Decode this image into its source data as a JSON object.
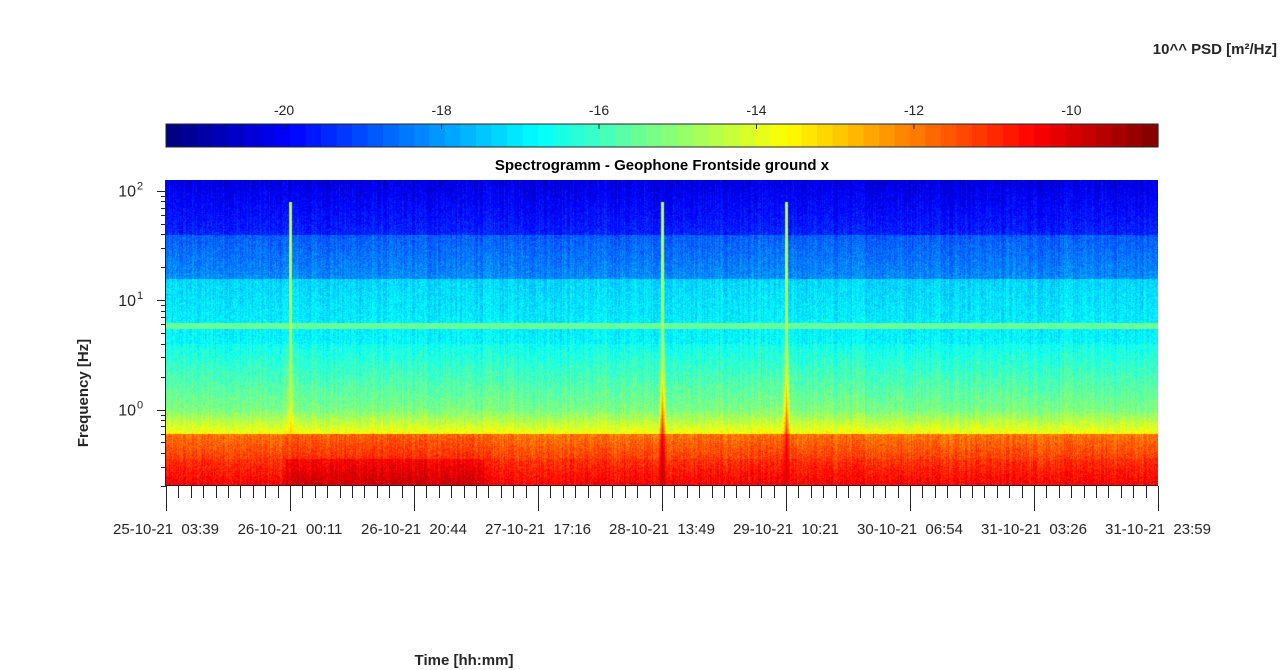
{
  "chart_data": {
    "type": "heatmap",
    "title": "Spectrogramm - Geophone Frontside ground x",
    "xlabel": "Time [hh:mm]",
    "ylabel": "Frequency [Hz]",
    "colorbar_label": "10^^ PSD [m²/Hz]",
    "colorbar_ticks": [
      "-20",
      "-18",
      "-16",
      "-14",
      "-12",
      "-10"
    ],
    "colorbar_tick_values": [
      -20,
      -18,
      -16,
      -14,
      -12,
      -10
    ],
    "colorbar_range": [
      -21.5,
      -8.9
    ],
    "colormap": "jet",
    "y_scale": "log",
    "y_range_hz": [
      0.2,
      125
    ],
    "y_ticks": [
      {
        "base": "10",
        "exp": "0",
        "value": 1
      },
      {
        "base": "10",
        "exp": "1",
        "value": 10
      },
      {
        "base": "10",
        "exp": "2",
        "value": 100
      }
    ],
    "x_ticks": [
      "25-10-21  03:39",
      "26-10-21  00:11",
      "26-10-21  20:44",
      "27-10-21  17:16",
      "28-10-21  13:49",
      "29-10-21  10:21",
      "30-10-21  06:54",
      "31-10-21  03:26",
      "31-10-21  23:59"
    ],
    "x_range": [
      "25-10-21 03:39",
      "31-10-21 23:59"
    ],
    "events": [
      {
        "time": "26-10-21 00:11",
        "peak_psd_exp": -12.5
      },
      {
        "time": "28-10-21 13:49",
        "peak_psd_exp": -9.5
      },
      {
        "time": "29-10-21 10:21",
        "peak_psd_exp": -10
      }
    ],
    "bands": [
      {
        "freq_range_hz": [
          5.5,
          6.3
        ],
        "psd_exp": -15.5
      },
      {
        "freq_range_hz": [
          0.2,
          0.6
        ],
        "psd_exp": -11
      }
    ]
  },
  "colors": {
    "background": "#ffffff",
    "axis": "#262626"
  }
}
